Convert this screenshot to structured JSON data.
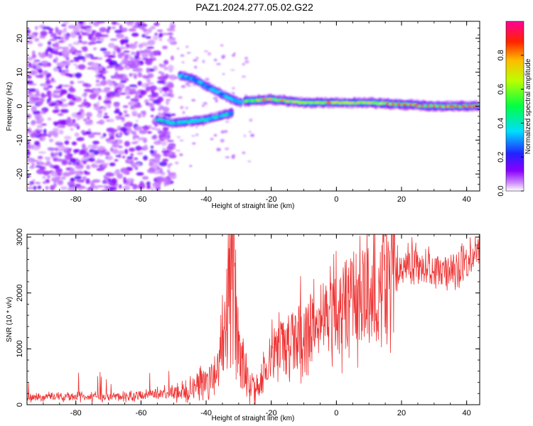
{
  "title": "PAZ1.2024.277.05.02.G22",
  "colorbar": {
    "label": "Normalized spectral amplitude",
    "ticks": [
      0.0,
      0.2,
      0.4,
      0.6,
      0.8
    ],
    "tick_labels": [
      "0.0",
      "0.2",
      "0.4",
      "0.6",
      "0.8"
    ]
  },
  "chart_data": [
    {
      "type": "heatmap",
      "name": "spectrogram",
      "xlabel": "Height of straight line (km)",
      "ylabel": "Frequency (Hz)",
      "xlim": [
        -95,
        44
      ],
      "ylim": [
        -25,
        25
      ],
      "xticks": [
        -80,
        -60,
        -40,
        -20,
        0,
        20,
        40
      ],
      "yticks": [
        -20,
        -10,
        0,
        10,
        20
      ],
      "colormap": "rainbow (white at 0, violet -> blue -> cyan -> green -> yellow -> red -> magenta)",
      "features": {
        "noise_region_km": [
          -95,
          -50
        ],
        "noise_amplitude": 0.05,
        "upper_branch": [
          [
            -48,
            9
          ],
          [
            -44,
            8
          ],
          [
            -40,
            6
          ],
          [
            -36,
            4
          ],
          [
            -32,
            2
          ],
          [
            -29,
            1
          ]
        ],
        "lower_branch": [
          [
            -55,
            -4
          ],
          [
            -50,
            -5
          ],
          [
            -45,
            -4.5
          ],
          [
            -40,
            -4
          ],
          [
            -36,
            -3
          ],
          [
            -32,
            -2
          ]
        ],
        "main_track": [
          [
            -28,
            1.5
          ],
          [
            -20,
            2
          ],
          [
            -10,
            1
          ],
          [
            0,
            1
          ],
          [
            10,
            1
          ],
          [
            20,
            0.5
          ],
          [
            30,
            0
          ],
          [
            44,
            0
          ]
        ]
      }
    },
    {
      "type": "line",
      "name": "snr",
      "xlabel": "Height of straight line (km)",
      "ylabel": "SNR (10 * v/v)",
      "xlim": [
        -95,
        44
      ],
      "ylim": [
        0,
        3050
      ],
      "xticks": [
        -80,
        -60,
        -40,
        -20,
        0,
        20,
        40
      ],
      "yticks": [
        0,
        1000,
        2000,
        3000
      ],
      "color": "#ee3333",
      "trend": [
        [
          -95,
          130
        ],
        [
          -85,
          140
        ],
        [
          -75,
          140
        ],
        [
          -65,
          150
        ],
        [
          -55,
          190
        ],
        [
          -50,
          230
        ],
        [
          -45,
          300
        ],
        [
          -40,
          450
        ],
        [
          -36,
          700
        ],
        [
          -33,
          1500
        ],
        [
          -32,
          2100
        ],
        [
          -30,
          900
        ],
        [
          -28,
          500
        ],
        [
          -25,
          250
        ],
        [
          -22,
          600
        ],
        [
          -20,
          900
        ],
        [
          -15,
          1100
        ],
        [
          -10,
          1300
        ],
        [
          -5,
          1500
        ],
        [
          0,
          1650
        ],
        [
          5,
          1900
        ],
        [
          10,
          1950
        ],
        [
          15,
          2100
        ],
        [
          18,
          2350
        ],
        [
          20,
          2550
        ],
        [
          25,
          2500
        ],
        [
          30,
          2400
        ],
        [
          35,
          2400
        ],
        [
          40,
          2500
        ],
        [
          42,
          2700
        ],
        [
          44,
          2950
        ]
      ],
      "spikes": [
        [
          -33,
          2800
        ],
        [
          -31,
          2780
        ],
        [
          -11,
          2300
        ],
        [
          -7,
          2250
        ],
        [
          6,
          2700
        ],
        [
          13,
          2450
        ],
        [
          44,
          3000
        ]
      ]
    }
  ]
}
